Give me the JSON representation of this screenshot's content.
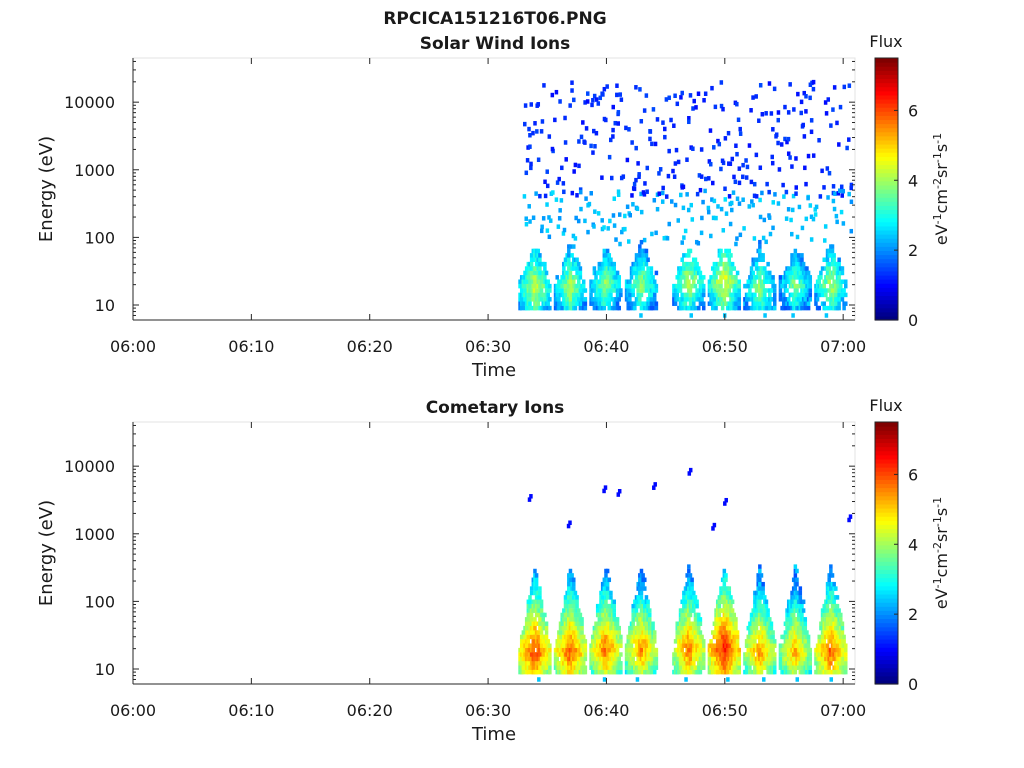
{
  "figure": {
    "title": "RPCICA151216T06.PNG"
  },
  "chart_data": [
    {
      "type": "heatmap",
      "title": "Solar Wind Ions",
      "xlabel": "Time",
      "ylabel": "Energy (eV)",
      "y_scale": "log",
      "x_ticks": [
        "06:00",
        "06:10",
        "06:20",
        "06:30",
        "06:40",
        "06:50",
        "07:00"
      ],
      "x_range": [
        "06:00",
        "07:01"
      ],
      "y_ticks": [
        10,
        100,
        1000,
        10000
      ],
      "y_tick_labels": [
        "10",
        "100",
        "1000",
        "10000"
      ],
      "y_range": [
        6,
        45000
      ],
      "colorbar": {
        "title": "Flux",
        "label": "eV-1cm-2sr-1s-1",
        "range": [
          0,
          7.5
        ],
        "ticks": [
          0,
          2,
          4,
          6
        ],
        "colormap": "jet"
      },
      "data_start": "06:33",
      "sweep_period_min": 3.2,
      "sweep_bursts": [
        {
          "t": "06:34",
          "e_ev": 18,
          "flux": 4.4
        },
        {
          "t": "06:37",
          "e_ev": 18,
          "flux": 4.2
        },
        {
          "t": "06:40",
          "e_ev": 20,
          "flux": 4.0
        },
        {
          "t": "06:43",
          "e_ev": 20,
          "flux": 4.0
        },
        {
          "t": "06:47",
          "e_ev": 22,
          "flux": 4.3
        },
        {
          "t": "06:50",
          "e_ev": 22,
          "flux": 4.6
        },
        {
          "t": "06:53",
          "e_ev": 18,
          "flux": 4.0
        },
        {
          "t": "06:56",
          "e_ev": 20,
          "flux": 3.8
        },
        {
          "t": "06:59",
          "e_ev": 20,
          "flux": 4.2
        }
      ],
      "sparse_flux_high_energy": 1.0,
      "sparse_flux_mid_energy": 2.0
    },
    {
      "type": "heatmap",
      "title": "Cometary Ions",
      "xlabel": "Time",
      "ylabel": "Energy (eV)",
      "y_scale": "log",
      "x_ticks": [
        "06:00",
        "06:10",
        "06:20",
        "06:30",
        "06:40",
        "06:50",
        "07:00"
      ],
      "x_range": [
        "06:00",
        "07:01"
      ],
      "y_ticks": [
        10,
        100,
        1000,
        10000
      ],
      "y_tick_labels": [
        "10",
        "100",
        "1000",
        "10000"
      ],
      "y_range": [
        6,
        45000
      ],
      "colorbar": {
        "title": "Flux",
        "label": "eV-1cm-2sr-1s-1",
        "range": [
          0,
          7.5
        ],
        "ticks": [
          0,
          2,
          4,
          6
        ],
        "colormap": "jet"
      },
      "data_start": "06:33",
      "sweep_period_min": 3.2,
      "sweep_bursts": [
        {
          "t": "06:34",
          "e_ev": 18,
          "flux": 6.2
        },
        {
          "t": "06:37",
          "e_ev": 18,
          "flux": 6.0
        },
        {
          "t": "06:40",
          "e_ev": 20,
          "flux": 5.8
        },
        {
          "t": "06:43",
          "e_ev": 20,
          "flux": 5.6
        },
        {
          "t": "06:47",
          "e_ev": 20,
          "flux": 5.8
        },
        {
          "t": "06:50",
          "e_ev": 20,
          "flux": 6.5
        },
        {
          "t": "06:53",
          "e_ev": 18,
          "flux": 5.6
        },
        {
          "t": "06:56",
          "e_ev": 18,
          "flux": 5.4
        },
        {
          "t": "06:59",
          "e_ev": 18,
          "flux": 6.0
        }
      ],
      "sparse_points": [
        {
          "t": "06:33.5",
          "e_ev": 3200,
          "flux": 1.0
        },
        {
          "t": "06:36.8",
          "e_ev": 1300,
          "flux": 1.0
        },
        {
          "t": "06:39.8",
          "e_ev": 4300,
          "flux": 1.0
        },
        {
          "t": "06:41",
          "e_ev": 3800,
          "flux": 1.0
        },
        {
          "t": "06:44",
          "e_ev": 4800,
          "flux": 1.0
        },
        {
          "t": "06:47",
          "e_ev": 7800,
          "flux": 1.0
        },
        {
          "t": "06:49",
          "e_ev": 1200,
          "flux": 1.0
        },
        {
          "t": "06:50",
          "e_ev": 2800,
          "flux": 1.0
        },
        {
          "t": "07:00.5",
          "e_ev": 1600,
          "flux": 1.0
        }
      ]
    }
  ]
}
